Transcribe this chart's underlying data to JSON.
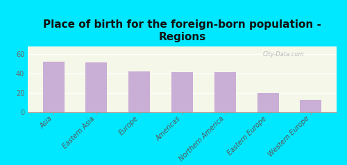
{
  "title": "Place of birth for the foreign-born population -\nRegions",
  "categories": [
    "Asia",
    "Eastern Asia",
    "Europe",
    "Americas",
    "Northern America",
    "Eastern Europe",
    "Western Europe"
  ],
  "values": [
    52,
    51,
    42,
    41,
    41,
    20,
    13
  ],
  "bar_color": "#c9aed6",
  "background_outer": "#00e8ff",
  "background_plot_top": "#f5f7e8",
  "background_plot_bottom": "#e8f0d8",
  "ylim": [
    0,
    68
  ],
  "yticks": [
    0,
    20,
    40,
    60
  ],
  "ytick_labels": [
    "0",
    "20",
    "40",
    "60"
  ],
  "title_fontsize": 11,
  "tick_fontsize": 7,
  "watermark": "City-Data.com"
}
